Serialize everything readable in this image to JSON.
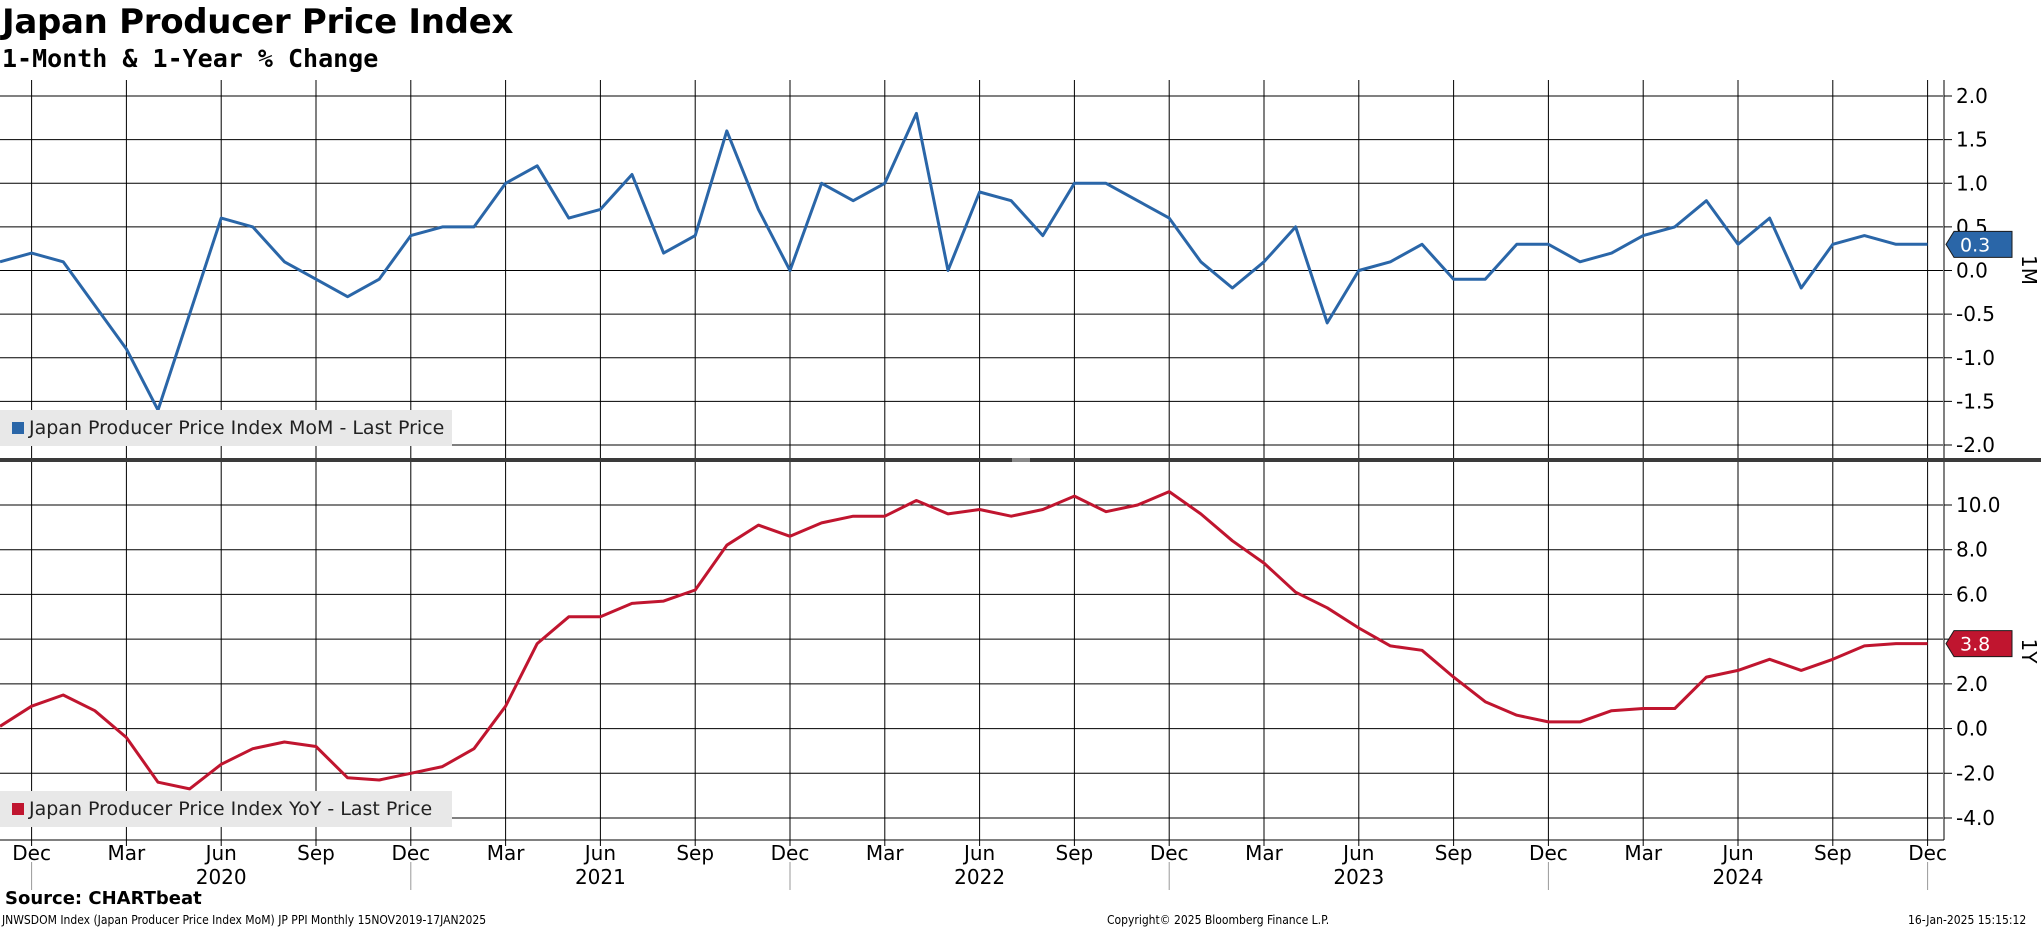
{
  "header": {
    "title": "Japan Producer Price Index",
    "subtitle": "1-Month & 1-Year % Change"
  },
  "footer": {
    "source": "Source: CHARTbeat",
    "ticker": "JNWSDOM Index (Japan Producer Price Index MoM) JP PPI  Monthly 15NOV2019-17JAN2025",
    "copyright": "Copyright© 2025 Bloomberg Finance L.P.",
    "timestamp": "16-Jan-2025 15:15:12"
  },
  "colors": {
    "mom": "#2a66a8",
    "yoy": "#c0152f",
    "grid": "#000000",
    "legend_bg": "#e8e8e8"
  },
  "chart_data": [
    {
      "type": "line",
      "panel_code": "1M",
      "legend": "Japan Producer Price Index MoM - Last Price",
      "last_value": "0.3",
      "ylim": [
        -2.0,
        2.0
      ],
      "y_ticks": [
        "2.0",
        "1.5",
        "1.0",
        "0.5",
        "0.0",
        "-0.5",
        "-1.0",
        "-1.5",
        "-2.0"
      ],
      "grid": true,
      "x": [
        "2019-11",
        "2019-12",
        "2020-01",
        "2020-02",
        "2020-03",
        "2020-04",
        "2020-05",
        "2020-06",
        "2020-07",
        "2020-08",
        "2020-09",
        "2020-10",
        "2020-11",
        "2020-12",
        "2021-01",
        "2021-02",
        "2021-03",
        "2021-04",
        "2021-05",
        "2021-06",
        "2021-07",
        "2021-08",
        "2021-09",
        "2021-10",
        "2021-11",
        "2021-12",
        "2022-01",
        "2022-02",
        "2022-03",
        "2022-04",
        "2022-05",
        "2022-06",
        "2022-07",
        "2022-08",
        "2022-09",
        "2022-10",
        "2022-11",
        "2022-12",
        "2023-01",
        "2023-02",
        "2023-03",
        "2023-04",
        "2023-05",
        "2023-06",
        "2023-07",
        "2023-08",
        "2023-09",
        "2023-10",
        "2023-11",
        "2023-12",
        "2024-01",
        "2024-02",
        "2024-03",
        "2024-04",
        "2024-05",
        "2024-06",
        "2024-07",
        "2024-08",
        "2024-09",
        "2024-10",
        "2024-11",
        "2024-12"
      ],
      "series": [
        {
          "name": "Japan Producer Price Index MoM - Last Price",
          "values": [
            0.1,
            0.2,
            0.1,
            -0.4,
            -0.9,
            -1.6,
            -0.5,
            0.6,
            0.5,
            0.1,
            -0.1,
            -0.3,
            -0.1,
            0.4,
            0.5,
            0.5,
            1.0,
            1.2,
            0.6,
            0.7,
            1.1,
            0.2,
            0.4,
            1.6,
            0.7,
            0.0,
            1.0,
            0.8,
            1.0,
            1.8,
            0.0,
            0.9,
            0.8,
            0.4,
            1.0,
            1.0,
            0.8,
            0.6,
            0.1,
            -0.2,
            0.1,
            0.5,
            -0.6,
            0.0,
            0.1,
            0.3,
            -0.1,
            -0.1,
            0.3,
            0.3,
            0.1,
            0.2,
            0.4,
            0.5,
            0.8,
            0.3,
            0.6,
            -0.2,
            0.3,
            0.4,
            0.3,
            0.3
          ]
        }
      ]
    },
    {
      "type": "line",
      "panel_code": "1Y",
      "legend": "Japan Producer Price Index YoY - Last Price",
      "last_value": "3.8",
      "ylim": [
        -4.0,
        12.0
      ],
      "y_ticks": [
        "10.0",
        "8.0",
        "6.0",
        "4.0",
        "2.0",
        "0.0",
        "-2.0",
        "-4.0"
      ],
      "grid": true,
      "x": [
        "2019-11",
        "2019-12",
        "2020-01",
        "2020-02",
        "2020-03",
        "2020-04",
        "2020-05",
        "2020-06",
        "2020-07",
        "2020-08",
        "2020-09",
        "2020-10",
        "2020-11",
        "2020-12",
        "2021-01",
        "2021-02",
        "2021-03",
        "2021-04",
        "2021-05",
        "2021-06",
        "2021-07",
        "2021-08",
        "2021-09",
        "2021-10",
        "2021-11",
        "2021-12",
        "2022-01",
        "2022-02",
        "2022-03",
        "2022-04",
        "2022-05",
        "2022-06",
        "2022-07",
        "2022-08",
        "2022-09",
        "2022-10",
        "2022-11",
        "2022-12",
        "2023-01",
        "2023-02",
        "2023-03",
        "2023-04",
        "2023-05",
        "2023-06",
        "2023-07",
        "2023-08",
        "2023-09",
        "2023-10",
        "2023-11",
        "2023-12",
        "2024-01",
        "2024-02",
        "2024-03",
        "2024-04",
        "2024-05",
        "2024-06",
        "2024-07",
        "2024-08",
        "2024-09",
        "2024-10",
        "2024-11",
        "2024-12"
      ],
      "series": [
        {
          "name": "Japan Producer Price Index YoY - Last Price",
          "values": [
            0.1,
            1.0,
            1.5,
            0.8,
            -0.4,
            -2.4,
            -2.7,
            -1.6,
            -0.9,
            -0.6,
            -0.8,
            -2.2,
            -2.3,
            -2.0,
            -1.7,
            -0.9,
            1.0,
            3.8,
            5.0,
            5.0,
            5.6,
            5.7,
            6.2,
            8.2,
            9.1,
            8.6,
            9.2,
            9.5,
            9.5,
            10.2,
            9.6,
            9.8,
            9.5,
            9.8,
            10.4,
            9.7,
            10.0,
            10.6,
            9.6,
            8.4,
            7.4,
            6.1,
            5.4,
            4.5,
            3.7,
            3.5,
            2.3,
            1.2,
            0.6,
            0.3,
            0.3,
            0.8,
            0.9,
            0.9,
            2.3,
            2.6,
            3.1,
            2.6,
            3.1,
            3.7,
            3.8,
            3.8
          ]
        }
      ]
    }
  ],
  "x_axis": {
    "month_labels": [
      {
        "t": "2019-12",
        "label": "Dec"
      },
      {
        "t": "2020-03",
        "label": "Mar"
      },
      {
        "t": "2020-06",
        "label": "Jun"
      },
      {
        "t": "2020-09",
        "label": "Sep"
      },
      {
        "t": "2020-12",
        "label": "Dec"
      },
      {
        "t": "2021-03",
        "label": "Mar"
      },
      {
        "t": "2021-06",
        "label": "Jun"
      },
      {
        "t": "2021-09",
        "label": "Sep"
      },
      {
        "t": "2021-12",
        "label": "Dec"
      },
      {
        "t": "2022-03",
        "label": "Mar"
      },
      {
        "t": "2022-06",
        "label": "Jun"
      },
      {
        "t": "2022-09",
        "label": "Sep"
      },
      {
        "t": "2022-12",
        "label": "Dec"
      },
      {
        "t": "2023-03",
        "label": "Mar"
      },
      {
        "t": "2023-06",
        "label": "Jun"
      },
      {
        "t": "2023-09",
        "label": "Sep"
      },
      {
        "t": "2023-12",
        "label": "Dec"
      },
      {
        "t": "2024-03",
        "label": "Mar"
      },
      {
        "t": "2024-06",
        "label": "Jun"
      },
      {
        "t": "2024-09",
        "label": "Sep"
      },
      {
        "t": "2024-12",
        "label": "Dec"
      }
    ],
    "year_labels": [
      {
        "t": "2020-06",
        "label": "2020"
      },
      {
        "t": "2021-06",
        "label": "2021"
      },
      {
        "t": "2022-06",
        "label": "2022"
      },
      {
        "t": "2023-06",
        "label": "2023"
      },
      {
        "t": "2024-06",
        "label": "2024"
      }
    ]
  }
}
